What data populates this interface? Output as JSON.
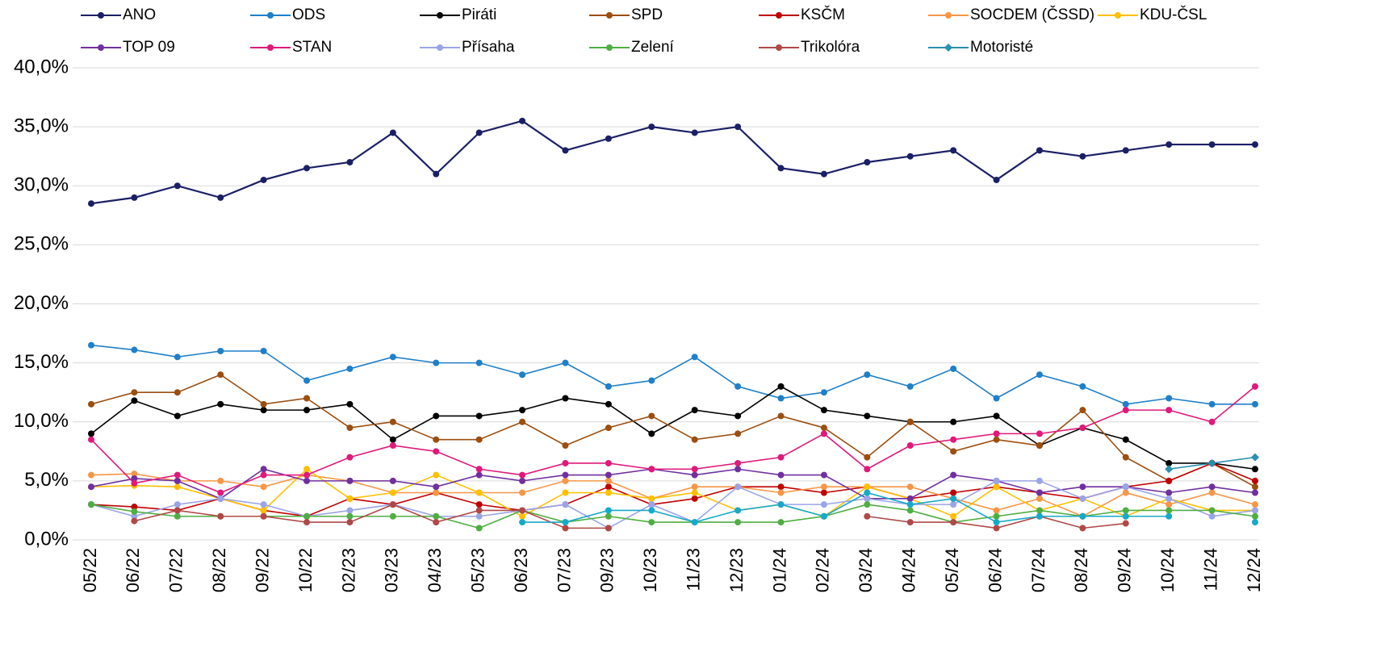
{
  "chart_data": {
    "type": "line",
    "categories": [
      "05/22",
      "06/22",
      "07/22",
      "08/22",
      "09/22",
      "10/22",
      "02/23",
      "03/23",
      "04/23",
      "05/23",
      "06/23",
      "07/23",
      "09/23",
      "10/23",
      "11/23",
      "12/23",
      "01/24",
      "02/24",
      "03/24",
      "04/24",
      "05/24",
      "06/24",
      "07/24",
      "08/24",
      "09/24",
      "10/24",
      "11/24",
      "12/24"
    ],
    "ylim": [
      0,
      40
    ],
    "yticks": [
      {
        "value": 0,
        "label": "0,0%"
      },
      {
        "value": 5,
        "label": "5,0%"
      },
      {
        "value": 10,
        "label": "10,0%"
      },
      {
        "value": 15,
        "label": "15,0%"
      },
      {
        "value": 20,
        "label": "20,0%"
      },
      {
        "value": 25,
        "label": "25,0%"
      },
      {
        "value": 30,
        "label": "30,0%"
      },
      {
        "value": 35,
        "label": "35,0%"
      },
      {
        "value": 40,
        "label": "40,0%"
      }
    ],
    "grid": true,
    "series": [
      {
        "name": "ANO",
        "color": "#1b1f66",
        "values": [
          28.5,
          29,
          30,
          29,
          30.5,
          31.5,
          32,
          34.5,
          31,
          34.5,
          35.5,
          33,
          34,
          35,
          34.5,
          35,
          31.5,
          31,
          32,
          32.5,
          33,
          30.5,
          33,
          32.5,
          33,
          33.5,
          33.5,
          33.5
        ]
      },
      {
        "name": "ODS",
        "color": "#1f7fc9",
        "values": [
          16.5,
          16.1,
          15.5,
          16,
          16,
          13.5,
          14.5,
          15.5,
          15,
          15,
          14,
          15,
          13,
          13.5,
          15.5,
          13,
          12,
          12.5,
          14,
          13,
          14.5,
          12,
          14,
          13,
          11.5,
          12,
          11.5,
          11.5
        ]
      },
      {
        "name": "Piráti",
        "color": "#000000",
        "values": [
          9,
          11.8,
          10.5,
          11.5,
          11,
          11,
          11.5,
          8.5,
          10.5,
          10.5,
          11,
          12,
          11.5,
          9,
          11,
          10.5,
          13,
          11,
          10.5,
          10,
          10,
          10.5,
          8,
          9.5,
          8.5,
          6.5,
          6.5,
          6
        ]
      },
      {
        "name": "SPD",
        "color": "#9c4e0f",
        "values": [
          11.5,
          12.5,
          12.5,
          14,
          11.5,
          12,
          9.5,
          10,
          8.5,
          8.5,
          10,
          8,
          9.5,
          10.5,
          8.5,
          9,
          10.5,
          9.5,
          7,
          10,
          7.5,
          8.5,
          8,
          11,
          7,
          5,
          6.5,
          4.5
        ]
      },
      {
        "name": "KSČM",
        "color": "#c00000",
        "values": [
          3,
          2.8,
          2.5,
          3.5,
          2.5,
          2,
          3.5,
          3,
          4,
          3,
          2.5,
          3,
          4.5,
          3,
          3.5,
          4.5,
          4.5,
          4,
          4.5,
          3.5,
          4,
          4.5,
          4,
          3.5,
          4.5,
          5,
          6.5,
          5
        ]
      },
      {
        "name": "SOCDEM (ČSSD)",
        "color": "#f79646",
        "values": [
          5.5,
          5.6,
          5,
          5,
          4.5,
          5.5,
          5,
          4,
          4,
          4,
          4,
          5,
          5,
          3.5,
          4.5,
          4.5,
          4,
          4.5,
          4.5,
          4.5,
          3.5,
          2.5,
          3.5,
          2,
          4,
          3,
          4,
          3
        ]
      },
      {
        "name": "KDU-ČSL",
        "color": "#ffc000",
        "values": [
          4.5,
          4.6,
          4.5,
          3.5,
          2.5,
          6,
          3.5,
          4,
          5.5,
          4,
          2,
          4,
          4,
          3.5,
          4,
          2.5,
          3,
          2,
          4.5,
          3.5,
          2,
          4.5,
          2.5,
          3.5,
          2,
          3.5,
          2.5,
          2.5
        ]
      },
      {
        "name": "TOP 09",
        "color": "#7030a0",
        "values": [
          4.5,
          5.2,
          5,
          3.5,
          6,
          5,
          5,
          5,
          4.5,
          5.5,
          5,
          5.5,
          5.5,
          6,
          5.5,
          6,
          5.5,
          5.5,
          3.5,
          3.5,
          5.5,
          5,
          4,
          4.5,
          4.5,
          4,
          4.5,
          4
        ]
      },
      {
        "name": "STAN",
        "color": "#e0197a",
        "values": [
          8.5,
          4.8,
          5.5,
          4,
          5.5,
          5.5,
          7,
          8,
          7.5,
          6,
          5.5,
          6.5,
          6.5,
          6,
          6,
          6.5,
          7,
          9,
          6,
          8,
          8.5,
          9,
          9,
          9.5,
          11,
          11,
          10,
          13
        ]
      },
      {
        "name": "Přísaha",
        "color": "#9aa5e8",
        "values": [
          3,
          2,
          3,
          3.5,
          3,
          2,
          2.5,
          3,
          2,
          2,
          2.5,
          3,
          1,
          3,
          1.5,
          4.5,
          3,
          3,
          3.5,
          3,
          3,
          5,
          5,
          3.5,
          4.5,
          3.5,
          2,
          2.5
        ]
      },
      {
        "name": "Zelení",
        "color": "#4fae42",
        "values": [
          3,
          2.4,
          2,
          2,
          2,
          2,
          2,
          2,
          2,
          1,
          2.5,
          1.5,
          2,
          1.5,
          1.5,
          1.5,
          1.5,
          2,
          3,
          2.5,
          1.5,
          2,
          2.5,
          2,
          2.5,
          2.5,
          2.5,
          2
        ]
      },
      {
        "name": "Trikolóra",
        "color": "#b04848",
        "values": [
          null,
          1.6,
          2.5,
          2,
          2,
          1.5,
          1.5,
          3,
          1.5,
          2.5,
          2.5,
          1,
          1,
          null,
          null,
          null,
          null,
          null,
          2,
          1.5,
          1.5,
          1,
          2,
          1,
          1.4,
          null,
          null,
          null
        ]
      },
      {
        "name": "Motoristé",
        "color": "#2a8fb0",
        "marker": "diamond",
        "values": [
          null,
          null,
          null,
          null,
          null,
          null,
          null,
          null,
          null,
          null,
          null,
          null,
          null,
          null,
          null,
          null,
          null,
          null,
          null,
          null,
          null,
          null,
          null,
          null,
          null,
          6,
          6.5,
          7
        ]
      },
      {
        "color": "#17a9c9",
        "values": [
          null,
          null,
          null,
          null,
          null,
          null,
          null,
          null,
          null,
          null,
          1.5,
          1.5,
          2.5,
          2.5,
          1.5,
          2.5,
          3,
          2,
          4,
          3,
          3.5,
          1.5,
          2,
          2,
          2,
          2,
          null,
          1.5
        ]
      }
    ]
  }
}
